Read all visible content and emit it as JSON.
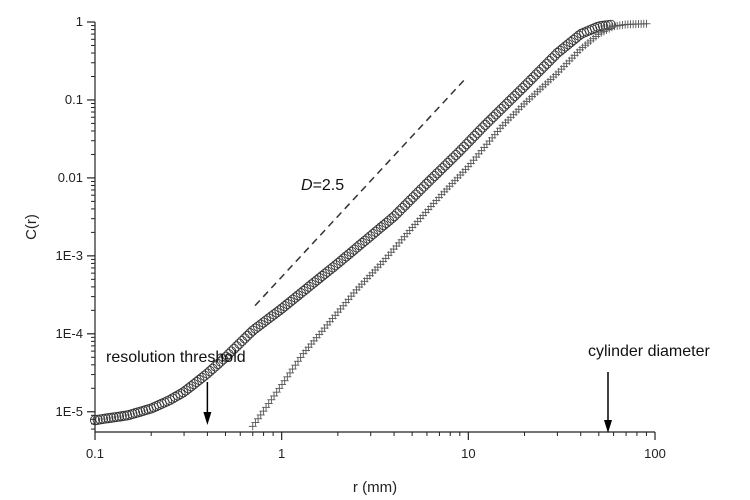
{
  "chart_data": {
    "type": "scatter",
    "xlabel": "r (mm)",
    "ylabel": "C(r)",
    "xscale": "log",
    "yscale": "log",
    "xlim": [
      0.1,
      100
    ],
    "ylim": [
      5.5e-06,
      1
    ],
    "x_ticks": [
      {
        "value": 0.1,
        "label": "0.1"
      },
      {
        "value": 1,
        "label": "1"
      },
      {
        "value": 10,
        "label": "10"
      },
      {
        "value": 100,
        "label": "100"
      }
    ],
    "y_ticks": [
      {
        "value": 1e-05,
        "label": "1E-5"
      },
      {
        "value": 0.0001,
        "label": "1E-4"
      },
      {
        "value": 0.001,
        "label": "1E-3"
      },
      {
        "value": 0.01,
        "label": "0.01"
      },
      {
        "value": 0.1,
        "label": "0.1"
      },
      {
        "value": 1,
        "label": "1"
      }
    ],
    "grid": false,
    "series": [
      {
        "marker": "circle",
        "x": [
          0.1,
          0.15,
          0.2,
          0.25,
          0.3,
          0.35,
          0.4,
          0.5,
          0.7,
          1.0,
          1.5,
          2.0,
          3.0,
          4.0,
          6.0,
          9.0,
          12.0,
          20.0,
          30.0,
          40.0,
          50.0,
          60.0
        ],
        "y": [
          7.8e-06,
          9e-06,
          1.1e-05,
          1.4e-05,
          1.8e-05,
          2.4e-05,
          3.1e-05,
          5e-05,
          0.00011,
          0.00021,
          0.00046,
          0.0008,
          0.0018,
          0.0032,
          0.0085,
          0.022,
          0.045,
          0.15,
          0.4,
          0.7,
          0.88,
          0.93
        ]
      },
      {
        "marker": "plus",
        "x": [
          0.7,
          1.0,
          1.3,
          1.8,
          2.5,
          3.5,
          5.0,
          7.0,
          10.0,
          15.0,
          20.0,
          30.0,
          40.0,
          50.0,
          60.0,
          70.0,
          90.0
        ],
        "y": [
          6.5e-06,
          2.2e-05,
          5.5e-05,
          0.00014,
          0.00036,
          0.00085,
          0.0023,
          0.0057,
          0.014,
          0.045,
          0.09,
          0.22,
          0.45,
          0.7,
          0.88,
          0.93,
          0.95
        ]
      }
    ],
    "reference_line": {
      "style": "dashed",
      "x": [
        0.72,
        9.5
      ],
      "y": [
        0.00023,
        0.18
      ]
    },
    "annotations": {
      "slope_label_italic": "D",
      "slope_label_rest": "=2.5",
      "resolution": {
        "text": "resolution threshold",
        "x": 0.4
      },
      "cylinder": {
        "text": "cylinder diameter",
        "x": 56
      }
    }
  }
}
